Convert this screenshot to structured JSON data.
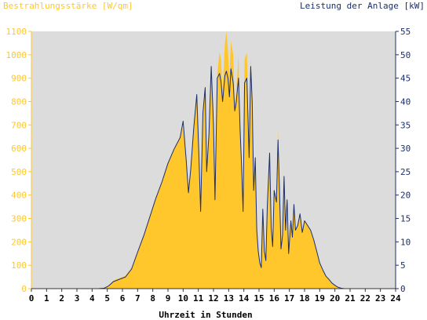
{
  "chart_data": {
    "type": "area",
    "title": "",
    "left_axis_title": "Bestrahlungsstärke [W/qm]",
    "right_axis_title": "Leistung der Anlage [kW]",
    "xlabel": "Uhrzeit in Stunden",
    "xlim": [
      0,
      24
    ],
    "x_ticks": [
      "0",
      "1",
      "2",
      "3",
      "4",
      "5",
      "6",
      "7",
      "8",
      "9",
      "10",
      "11",
      "12",
      "13",
      "14",
      "15",
      "16",
      "17",
      "18",
      "19",
      "20",
      "21",
      "22",
      "23",
      "24"
    ],
    "y_left_lim": [
      0,
      1100
    ],
    "y_left_ticks": [
      "0",
      "100",
      "200",
      "300",
      "400",
      "500",
      "600",
      "700",
      "800",
      "900",
      "1000",
      "1100"
    ],
    "y_right_lim": [
      0,
      55
    ],
    "y_right_ticks": [
      "0",
      "5",
      "10",
      "15",
      "20",
      "25",
      "30",
      "35",
      "40",
      "45",
      "50",
      "55"
    ],
    "grid": false,
    "series": [
      {
        "name": "Bestrahlungsstärke [W/qm]",
        "axis": "left",
        "style": "filled area",
        "color": "#FFC72C",
        "points": [
          [
            0,
            0
          ],
          [
            4.4,
            0
          ],
          [
            4.8,
            3
          ],
          [
            5.1,
            15
          ],
          [
            5.4,
            35
          ],
          [
            5.8,
            45
          ],
          [
            6.2,
            55
          ],
          [
            6.6,
            90
          ],
          [
            7,
            160
          ],
          [
            7.4,
            230
          ],
          [
            7.8,
            310
          ],
          [
            8.2,
            390
          ],
          [
            8.6,
            460
          ],
          [
            9,
            540
          ],
          [
            9.4,
            600
          ],
          [
            9.8,
            650
          ],
          [
            10,
            690
          ],
          [
            10.2,
            560
          ],
          [
            10.35,
            420
          ],
          [
            10.5,
            520
          ],
          [
            10.7,
            700
          ],
          [
            10.9,
            820
          ],
          [
            11.05,
            560
          ],
          [
            11.15,
            330
          ],
          [
            11.3,
            760
          ],
          [
            11.45,
            850
          ],
          [
            11.55,
            500
          ],
          [
            11.7,
            660
          ],
          [
            11.85,
            940
          ],
          [
            12,
            700
          ],
          [
            12.1,
            380
          ],
          [
            12.25,
            920
          ],
          [
            12.4,
            1010
          ],
          [
            12.5,
            980
          ],
          [
            12.6,
            840
          ],
          [
            12.75,
            1050
          ],
          [
            12.85,
            1100
          ],
          [
            12.95,
            1020
          ],
          [
            13.05,
            900
          ],
          [
            13.15,
            1060
          ],
          [
            13.3,
            1000
          ],
          [
            13.4,
            780
          ],
          [
            13.5,
            840
          ],
          [
            13.65,
            1000
          ],
          [
            13.75,
            700
          ],
          [
            13.85,
            520
          ],
          [
            13.95,
            330
          ],
          [
            14.05,
            980
          ],
          [
            14.2,
            1010
          ],
          [
            14.35,
            560
          ],
          [
            14.45,
            990
          ],
          [
            14.55,
            820
          ],
          [
            14.65,
            420
          ],
          [
            14.75,
            560
          ],
          [
            14.85,
            250
          ],
          [
            14.95,
            160
          ],
          [
            15.05,
            110
          ],
          [
            15.15,
            90
          ],
          [
            15.25,
            340
          ],
          [
            15.35,
            160
          ],
          [
            15.45,
            120
          ],
          [
            15.55,
            360
          ],
          [
            15.7,
            580
          ],
          [
            15.8,
            260
          ],
          [
            15.9,
            180
          ],
          [
            16,
            420
          ],
          [
            16.15,
            370
          ],
          [
            16.25,
            680
          ],
          [
            16.35,
            420
          ],
          [
            16.45,
            170
          ],
          [
            16.55,
            230
          ],
          [
            16.65,
            480
          ],
          [
            16.75,
            250
          ],
          [
            16.85,
            380
          ],
          [
            16.95,
            150
          ],
          [
            17.1,
            290
          ],
          [
            17.2,
            220
          ],
          [
            17.3,
            360
          ],
          [
            17.4,
            250
          ],
          [
            17.55,
            270
          ],
          [
            17.7,
            320
          ],
          [
            17.85,
            240
          ],
          [
            18,
            290
          ],
          [
            18.2,
            270
          ],
          [
            18.4,
            250
          ],
          [
            18.6,
            210
          ],
          [
            18.8,
            160
          ],
          [
            19,
            110
          ],
          [
            19.2,
            80
          ],
          [
            19.4,
            55
          ],
          [
            19.6,
            40
          ],
          [
            19.8,
            25
          ],
          [
            20,
            15
          ],
          [
            20.2,
            8
          ],
          [
            20.4,
            3
          ],
          [
            20.6,
            0
          ],
          [
            24,
            0
          ]
        ]
      },
      {
        "name": "Leistung der Anlage [kW]",
        "axis": "right",
        "style": "line",
        "color": "#1B2F6E",
        "points": [
          [
            0,
            0
          ],
          [
            4.4,
            0
          ],
          [
            4.8,
            0.1
          ],
          [
            5.1,
            0.6
          ],
          [
            5.4,
            1.5
          ],
          [
            5.8,
            2
          ],
          [
            6.2,
            2.5
          ],
          [
            6.6,
            4.2
          ],
          [
            7,
            7.8
          ],
          [
            7.4,
            11.3
          ],
          [
            7.8,
            15.3
          ],
          [
            8.2,
            19.3
          ],
          [
            8.6,
            22.8
          ],
          [
            9,
            26.8
          ],
          [
            9.4,
            29.8
          ],
          [
            9.8,
            32.3
          ],
          [
            10,
            35.8
          ],
          [
            10.2,
            27.5
          ],
          [
            10.35,
            20.5
          ],
          [
            10.5,
            25.5
          ],
          [
            10.7,
            34.5
          ],
          [
            10.9,
            41.5
          ],
          [
            11.05,
            27.5
          ],
          [
            11.15,
            16.5
          ],
          [
            11.3,
            37.5
          ],
          [
            11.45,
            43
          ],
          [
            11.55,
            25
          ],
          [
            11.7,
            33
          ],
          [
            11.85,
            47.5
          ],
          [
            12,
            35
          ],
          [
            12.1,
            19
          ],
          [
            12.25,
            45
          ],
          [
            12.4,
            46
          ],
          [
            12.5,
            44
          ],
          [
            12.6,
            40
          ],
          [
            12.75,
            45.5
          ],
          [
            12.85,
            46.5
          ],
          [
            12.95,
            45
          ],
          [
            13.05,
            41
          ],
          [
            13.15,
            47
          ],
          [
            13.3,
            44
          ],
          [
            13.4,
            38
          ],
          [
            13.5,
            40
          ],
          [
            13.65,
            45
          ],
          [
            13.75,
            34.5
          ],
          [
            13.85,
            26
          ],
          [
            13.95,
            16.5
          ],
          [
            14.05,
            44
          ],
          [
            14.2,
            45
          ],
          [
            14.35,
            28
          ],
          [
            14.45,
            47.5
          ],
          [
            14.55,
            40
          ],
          [
            14.65,
            21
          ],
          [
            14.75,
            28
          ],
          [
            14.85,
            12.5
          ],
          [
            14.95,
            8
          ],
          [
            15.05,
            5.5
          ],
          [
            15.15,
            4.5
          ],
          [
            15.25,
            17
          ],
          [
            15.35,
            8
          ],
          [
            15.45,
            6
          ],
          [
            15.55,
            18
          ],
          [
            15.7,
            29
          ],
          [
            15.8,
            13
          ],
          [
            15.9,
            9
          ],
          [
            16,
            21
          ],
          [
            16.15,
            18.5
          ],
          [
            16.25,
            31.8
          ],
          [
            16.35,
            21
          ],
          [
            16.45,
            8.5
          ],
          [
            16.55,
            11.5
          ],
          [
            16.65,
            24
          ],
          [
            16.75,
            12.5
          ],
          [
            16.85,
            19
          ],
          [
            16.95,
            7.5
          ],
          [
            17.1,
            14.5
          ],
          [
            17.2,
            11
          ],
          [
            17.3,
            18
          ],
          [
            17.4,
            12.5
          ],
          [
            17.55,
            13.5
          ],
          [
            17.7,
            16
          ],
          [
            17.85,
            12
          ],
          [
            18,
            14.5
          ],
          [
            18.2,
            13.5
          ],
          [
            18.4,
            12.5
          ],
          [
            18.6,
            10.5
          ],
          [
            18.8,
            8
          ],
          [
            19,
            5.5
          ],
          [
            19.2,
            4
          ],
          [
            19.4,
            2.7
          ],
          [
            19.6,
            2
          ],
          [
            19.8,
            1.2
          ],
          [
            20,
            0.7
          ],
          [
            20.2,
            0.3
          ],
          [
            20.4,
            0.1
          ],
          [
            20.6,
            0
          ],
          [
            24,
            0
          ]
        ]
      }
    ]
  },
  "colors": {
    "plot_background": "#DCDCDC",
    "left_axis": "#FFC72C",
    "right_axis": "#1B2F6E",
    "area_fill": "#FFC72C",
    "line": "#1B2F6E"
  }
}
